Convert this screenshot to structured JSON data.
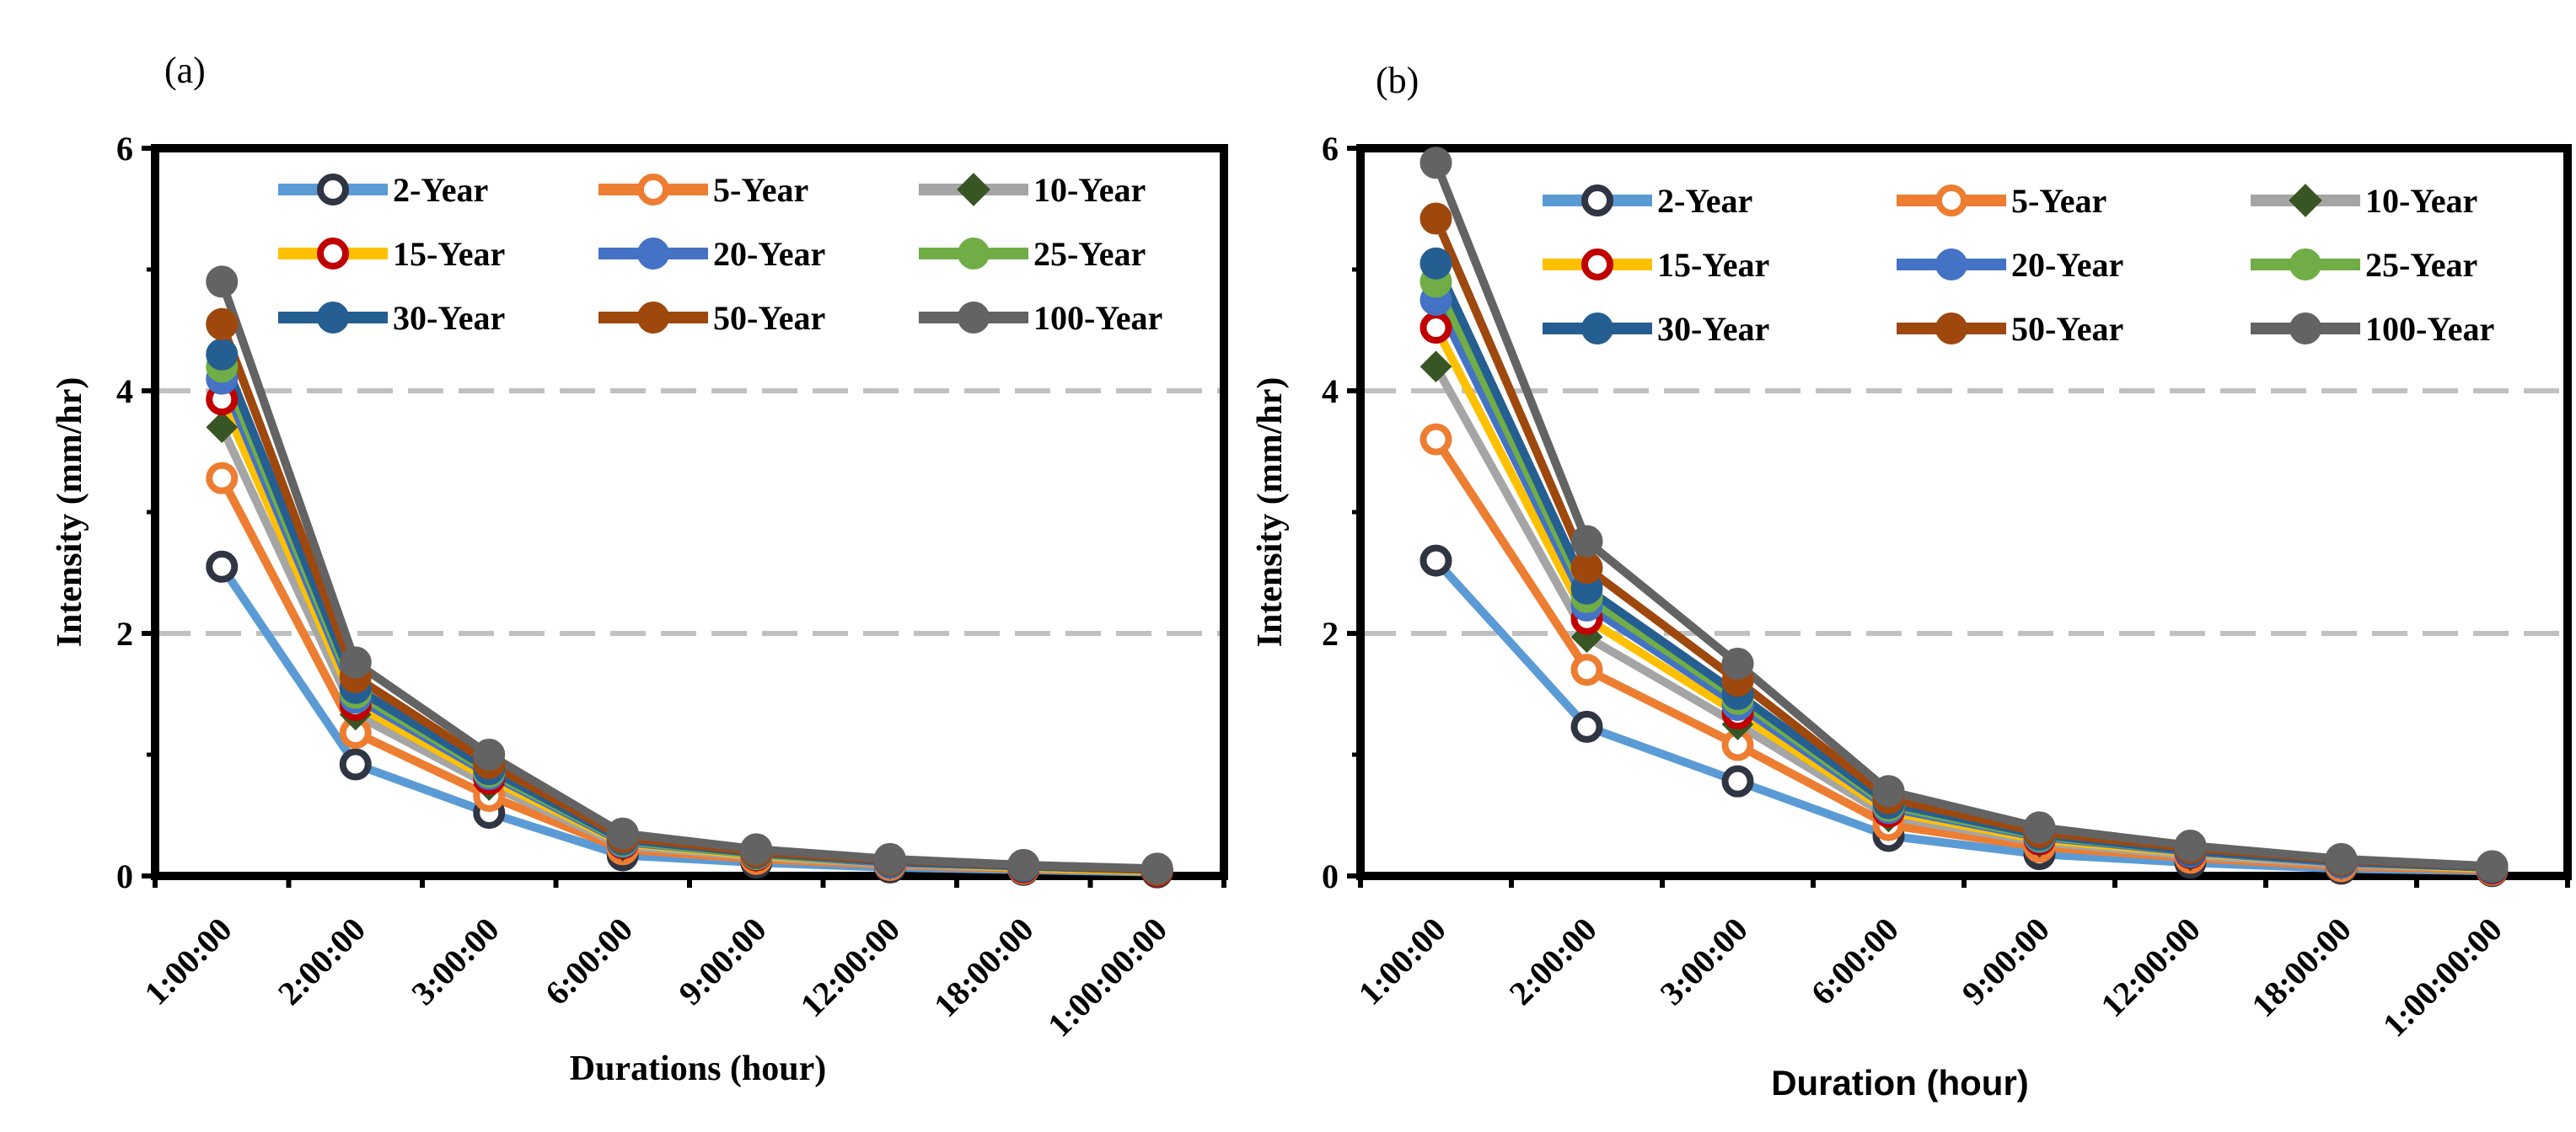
{
  "colors": {
    "2-Year": "#5b9bd5",
    "5-Year": "#ed7d31",
    "10-Year": "#a5a5a5",
    "15-Year": "#ffc000",
    "20-Year": "#4472c4",
    "25-Year": "#70ad47",
    "30-Year": "#255e91",
    "50-Year": "#9e480e",
    "100-Year": "#636363"
  },
  "markers": {
    "2-Year": {
      "fill": "#ffffff",
      "stroke": "#2f3542",
      "shape": "circle"
    },
    "5-Year": {
      "fill": "#ffffff",
      "stroke": "#ed7d31",
      "shape": "circle"
    },
    "10-Year": {
      "fill": "#375623",
      "stroke": "#375623",
      "shape": "diamond"
    },
    "15-Year": {
      "fill": "#ffffff",
      "stroke": "#c00000",
      "shape": "circle"
    },
    "20-Year": {
      "fill": "#4472c4",
      "stroke": "#4472c4",
      "shape": "circle"
    },
    "25-Year": {
      "fill": "#70ad47",
      "stroke": "#70ad47",
      "shape": "circle"
    },
    "30-Year": {
      "fill": "#255e91",
      "stroke": "#255e91",
      "shape": "circle"
    },
    "50-Year": {
      "fill": "#9e480e",
      "stroke": "#9e480e",
      "shape": "circle"
    },
    "100-Year": {
      "fill": "#636363",
      "stroke": "#636363",
      "shape": "circle"
    }
  },
  "chart_data": [
    {
      "type": "line",
      "panel_label": "(a)",
      "title": "",
      "xlabel": "Durations (hour)",
      "ylabel": "Intensity (mm/hr)",
      "categories": [
        "1:00:00",
        "2:00:00",
        "3:00:00",
        "6:00:00",
        "9:00:00",
        "12:00:00",
        "18:00:00",
        "1:00:00:00"
      ],
      "ylim": [
        0,
        6
      ],
      "yticks": [
        0,
        2,
        4,
        6
      ],
      "gridlines": [
        2,
        4
      ],
      "legend_position": "top",
      "series": [
        {
          "name": "2-Year",
          "values": [
            2.55,
            0.92,
            0.52,
            0.17,
            0.11,
            0.07,
            0.05,
            0.03
          ]
        },
        {
          "name": "5-Year",
          "values": [
            3.28,
            1.18,
            0.66,
            0.22,
            0.14,
            0.09,
            0.06,
            0.04
          ]
        },
        {
          "name": "10-Year",
          "values": [
            3.7,
            1.33,
            0.75,
            0.25,
            0.16,
            0.1,
            0.07,
            0.04
          ]
        },
        {
          "name": "15-Year",
          "values": [
            3.93,
            1.41,
            0.8,
            0.27,
            0.17,
            0.11,
            0.07,
            0.04
          ]
        },
        {
          "name": "20-Year",
          "values": [
            4.1,
            1.47,
            0.84,
            0.28,
            0.18,
            0.11,
            0.08,
            0.05
          ]
        },
        {
          "name": "25-Year",
          "values": [
            4.2,
            1.51,
            0.86,
            0.29,
            0.18,
            0.12,
            0.08,
            0.05
          ]
        },
        {
          "name": "30-Year",
          "values": [
            4.3,
            1.55,
            0.88,
            0.3,
            0.19,
            0.12,
            0.08,
            0.05
          ]
        },
        {
          "name": "50-Year",
          "values": [
            4.55,
            1.64,
            0.93,
            0.32,
            0.2,
            0.13,
            0.09,
            0.05
          ]
        },
        {
          "name": "100-Year",
          "values": [
            4.9,
            1.76,
            1.0,
            0.35,
            0.22,
            0.14,
            0.09,
            0.06
          ]
        }
      ]
    },
    {
      "type": "line",
      "panel_label": "(b)",
      "title": "",
      "xlabel": "Duration (hour)",
      "ylabel": "Intensity (mm/hr)",
      "categories": [
        "1:00:00",
        "2:00:00",
        "3:00:00",
        "6:00:00",
        "9:00:00",
        "12:00:00",
        "18:00:00",
        "1:00:00:00"
      ],
      "ylim": [
        0,
        6
      ],
      "yticks": [
        0,
        2,
        4,
        6
      ],
      "gridlines": [
        2,
        4
      ],
      "legend_position": "top",
      "series": [
        {
          "name": "2-Year",
          "values": [
            2.6,
            1.23,
            0.78,
            0.33,
            0.18,
            0.11,
            0.06,
            0.04
          ]
        },
        {
          "name": "5-Year",
          "values": [
            3.6,
            1.7,
            1.08,
            0.42,
            0.24,
            0.15,
            0.08,
            0.05
          ]
        },
        {
          "name": "10-Year",
          "values": [
            4.2,
            1.97,
            1.25,
            0.49,
            0.28,
            0.17,
            0.1,
            0.06
          ]
        },
        {
          "name": "15-Year",
          "values": [
            4.52,
            2.12,
            1.34,
            0.53,
            0.3,
            0.19,
            0.11,
            0.06
          ]
        },
        {
          "name": "20-Year",
          "values": [
            4.75,
            2.23,
            1.41,
            0.56,
            0.32,
            0.2,
            0.11,
            0.07
          ]
        },
        {
          "name": "25-Year",
          "values": [
            4.9,
            2.3,
            1.46,
            0.58,
            0.33,
            0.21,
            0.12,
            0.07
          ]
        },
        {
          "name": "30-Year",
          "values": [
            5.05,
            2.37,
            1.5,
            0.6,
            0.34,
            0.21,
            0.12,
            0.07
          ]
        },
        {
          "name": "50-Year",
          "values": [
            5.42,
            2.54,
            1.61,
            0.64,
            0.36,
            0.23,
            0.13,
            0.08
          ]
        },
        {
          "name": "100-Year",
          "values": [
            5.88,
            2.76,
            1.75,
            0.7,
            0.4,
            0.25,
            0.14,
            0.08
          ]
        }
      ]
    }
  ]
}
